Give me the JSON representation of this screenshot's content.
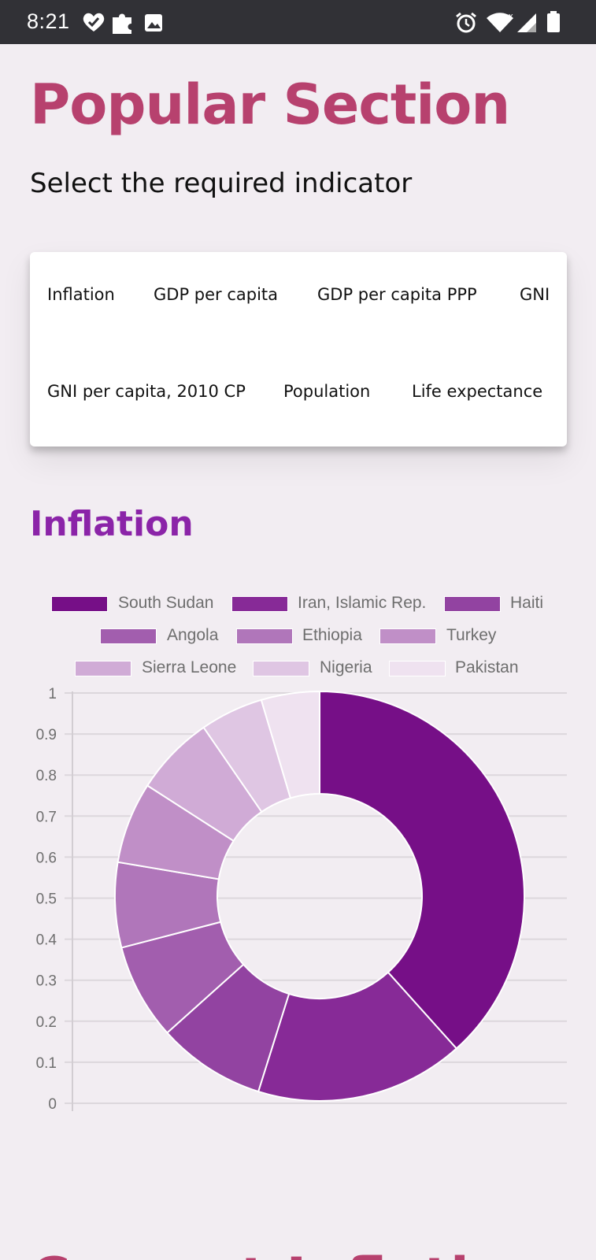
{
  "status_bar": {
    "time": "8:21",
    "icons": [
      "health-icon",
      "puzzle-icon",
      "image-icon",
      "alarm-icon",
      "wifi-icon",
      "signal-icon",
      "battery-icon"
    ]
  },
  "header": {
    "title": "Popular Section",
    "subtitle": "Select the required indicator"
  },
  "indicators": [
    "Inflation",
    "GDP per capita",
    "GDP per capita PPP",
    "GNI",
    "GNI per capita, 2010 CP",
    "Population",
    "Life expectance"
  ],
  "section": {
    "title": "Inflation"
  },
  "chart_data": {
    "type": "doughnut",
    "series": [
      {
        "name": "South Sudan",
        "value": 40.0,
        "color": "#760f87"
      },
      {
        "name": "Iran, Islamic Rep.",
        "value": 17.2,
        "color": "#872a97"
      },
      {
        "name": "Haiti",
        "value": 8.9,
        "color": "#9243a1"
      },
      {
        "name": "Angola",
        "value": 7.9,
        "color": "#a25eae"
      },
      {
        "name": "Ethiopia",
        "value": 7.0,
        "color": "#b076ba"
      },
      {
        "name": "Turkey",
        "value": 6.7,
        "color": "#c08fc7"
      },
      {
        "name": "Sierra Leone",
        "value": 6.6,
        "color": "#d0abd6"
      },
      {
        "name": "Nigeria",
        "value": 5.2,
        "color": "#dfc6e3"
      },
      {
        "name": "Pakistan",
        "value": 4.8,
        "color": "#efe2f0"
      }
    ],
    "y_axis": {
      "ticks": [
        "1",
        "0.9",
        "0.8",
        "0.7",
        "0.6",
        "0.5",
        "0.4",
        "0.3",
        "0.2",
        "0.1",
        "0"
      ],
      "ylim": [
        0,
        1
      ]
    },
    "grid": true,
    "legend_position": "top"
  },
  "next_section": {
    "title_partial": "Current Inflation"
  }
}
